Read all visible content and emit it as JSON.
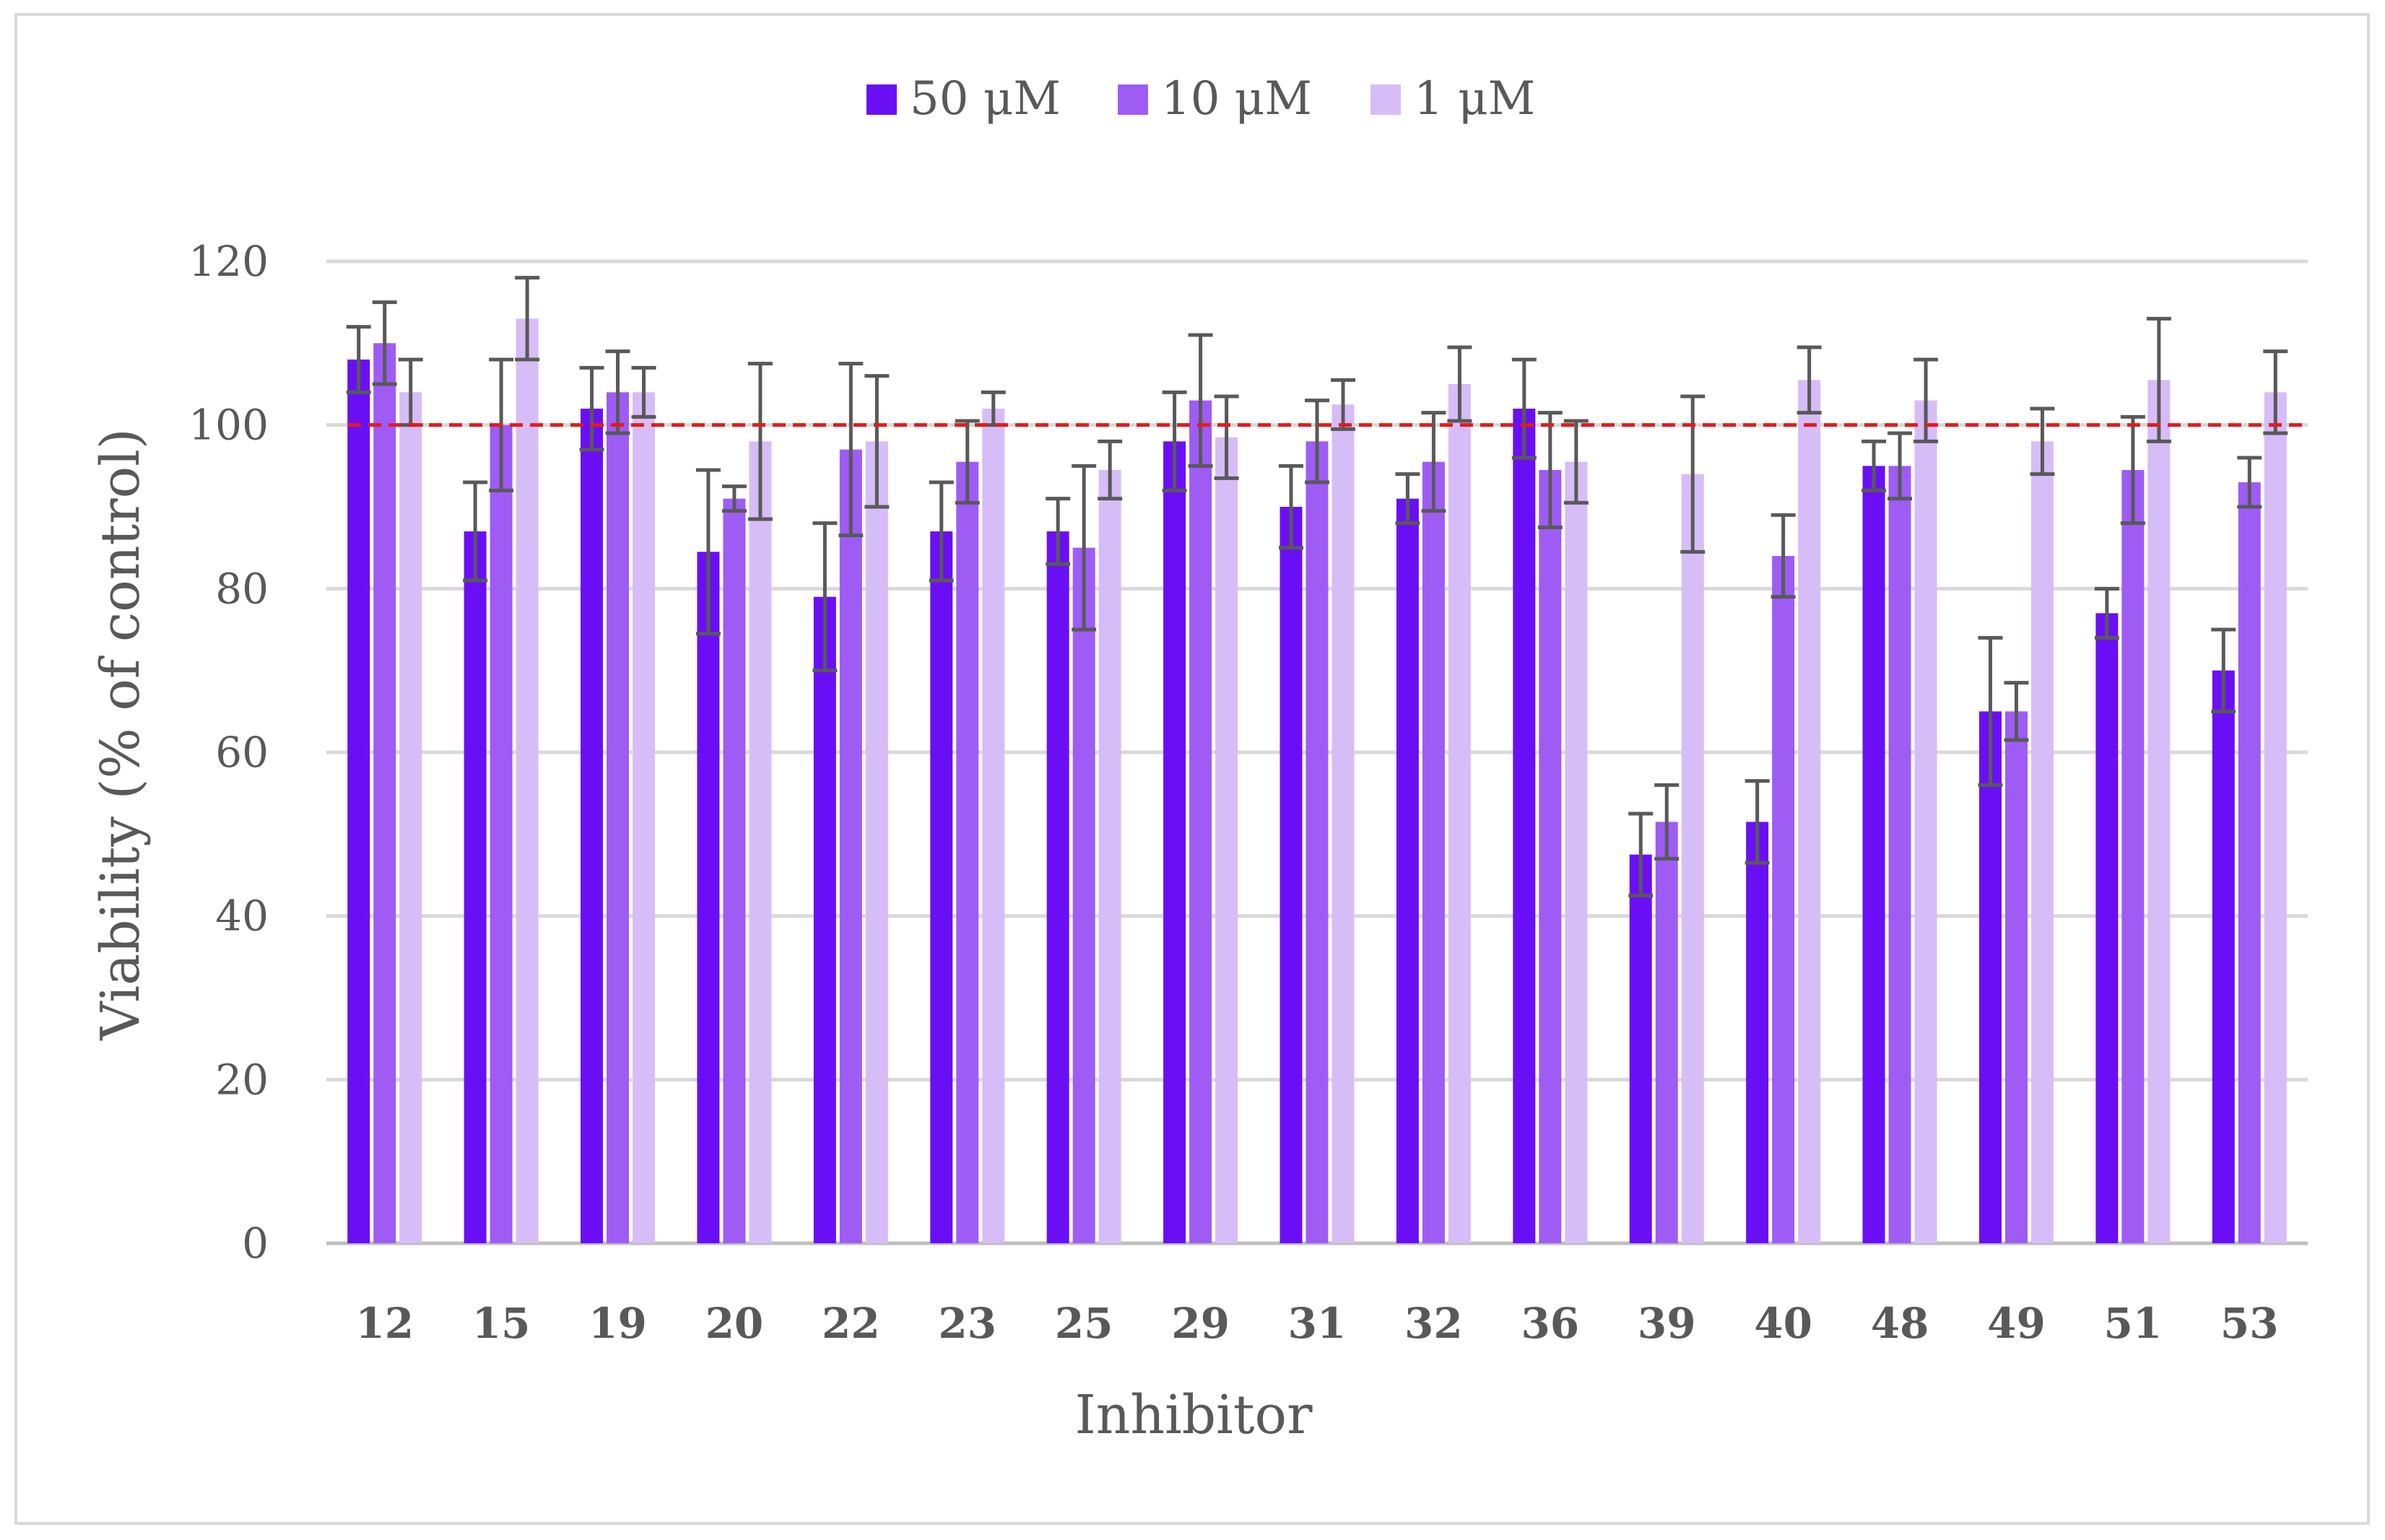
{
  "chart_data": {
    "type": "bar",
    "title": "",
    "xlabel": "Inhibitor",
    "ylabel": "Viability (% of control)",
    "ylim": [
      0,
      120
    ],
    "yticks": [
      0,
      20,
      40,
      60,
      80,
      100,
      120
    ],
    "reference_line": {
      "y": 100,
      "style": "dashed",
      "color": "#e31b1b"
    },
    "legend_position": "top-center",
    "categories": [
      "12",
      "15",
      "19",
      "20",
      "22",
      "23",
      "25",
      "29",
      "31",
      "32",
      "36",
      "39",
      "40",
      "48",
      "49",
      "51",
      "53"
    ],
    "series": [
      {
        "name": "50 μM",
        "color": "#6a0ff5",
        "values": [
          108,
          87,
          102,
          84.5,
          79,
          87,
          87,
          98,
          90,
          91,
          102,
          47.5,
          51.5,
          95,
          65,
          77,
          70
        ],
        "errors": [
          4,
          6,
          5,
          10,
          9,
          6,
          4,
          6,
          5,
          3,
          6,
          5,
          5,
          3,
          9,
          3,
          5
        ]
      },
      {
        "name": "10 μM",
        "color": "#9e5cf5",
        "values": [
          110,
          100,
          104,
          91,
          97,
          95.5,
          85,
          103,
          98,
          95.5,
          94.5,
          51.5,
          84,
          95,
          65,
          94.5,
          93
        ],
        "errors": [
          5,
          8,
          5,
          1.5,
          10.5,
          5,
          10,
          8,
          5,
          6,
          7,
          4.5,
          5,
          4,
          3.5,
          6.5,
          3
        ]
      },
      {
        "name": "1 μM",
        "color": "#d6bdf7",
        "values": [
          104,
          113,
          104,
          98,
          98,
          102,
          94.5,
          98.5,
          102.5,
          105,
          95.5,
          94,
          105.5,
          103,
          98,
          105.5,
          104
        ],
        "errors": [
          4,
          5,
          3,
          9.5,
          8,
          2,
          3.5,
          5,
          3,
          4.5,
          5,
          9.5,
          4,
          5,
          4,
          7.5,
          5
        ]
      }
    ]
  }
}
